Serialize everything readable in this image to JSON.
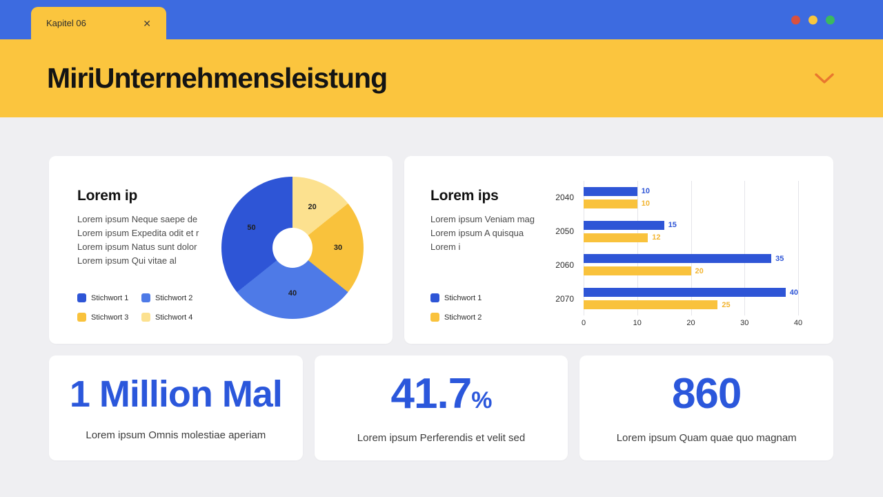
{
  "theme": {
    "primary_blue": "#3D6BE0",
    "accent_yellow": "#FBC53E",
    "background": "#EFEFF2",
    "stat_blue": "#2B57DB",
    "chevron_orange": "#E9772E",
    "title_color": "#141414"
  },
  "window": {
    "tab_label": "Kapitel 06",
    "close_glyph": "✕",
    "traffic_lights": [
      {
        "name": "red",
        "color": "#D9513F"
      },
      {
        "name": "yellow",
        "color": "#F8C63F"
      },
      {
        "name": "green",
        "color": "#3BB95F"
      }
    ]
  },
  "header": {
    "title": "MiriUnternehmensleistung"
  },
  "pie_card": {
    "title": "Lorem ip",
    "lines": [
      "Lorem ipsum Neque saepe de",
      "Lorem ipsum Expedita odit et r",
      "Lorem ipsum Natus sunt dolor",
      "Lorem ipsum Qui vitae al"
    ],
    "legend": [
      {
        "label": "Stichwort 1",
        "color": "#2E55D6"
      },
      {
        "label": "Stichwort 2",
        "color": "#4E7AE7"
      },
      {
        "label": "Stichwort 3",
        "color": "#F9C23C"
      },
      {
        "label": "Stichwort 4",
        "color": "#FCE18F"
      }
    ]
  },
  "bar_card": {
    "title": "Lorem ips",
    "lines": [
      "Lorem ipsum Veniam mag",
      "Lorem ipsum A quisqua",
      "Lorem i"
    ],
    "legend": [
      {
        "label": "Stichwort 1",
        "color": "#2E55D6"
      },
      {
        "label": "Stichwort 2",
        "color": "#F9C23C"
      }
    ]
  },
  "chart_data": [
    {
      "type": "pie",
      "title": "Lorem ip",
      "donut": true,
      "start_angle_deg": 0,
      "clockwise": true,
      "slices": [
        {
          "label": "Stichwort 4",
          "value": 20,
          "color": "#FCE18F"
        },
        {
          "label": "Stichwort 3",
          "value": 30,
          "color": "#F9C23C"
        },
        {
          "label": "Stichwort 2",
          "value": 40,
          "color": "#4E7AE7"
        },
        {
          "label": "Stichwort 1",
          "value": 50,
          "color": "#2E55D6"
        }
      ]
    },
    {
      "type": "bar",
      "orientation": "horizontal",
      "title": "Lorem ips",
      "categories": [
        "2040",
        "2050",
        "2060",
        "2070"
      ],
      "series": [
        {
          "name": "Stichwort 1",
          "color": "#2E55D6",
          "label_color": "#2E55D6",
          "values": [
            10,
            15,
            35,
            40
          ]
        },
        {
          "name": "Stichwort 2",
          "color": "#F9C23C",
          "label_color": "#F2B430",
          "values": [
            10,
            12,
            20,
            25
          ]
        }
      ],
      "xlim": [
        0,
        40
      ],
      "xticks": [
        0,
        10,
        20,
        30,
        40
      ],
      "grid": true,
      "legend_position": "bottom-left"
    }
  ],
  "stats": [
    {
      "value": "1 Million Mal",
      "caption": "Lorem ipsum Omnis molestiae aperiam"
    },
    {
      "value": "41.7",
      "unit": "%",
      "caption": "Lorem ipsum Perferendis et velit sed"
    },
    {
      "value": "860",
      "caption": "Lorem ipsum Quam quae quo magnam"
    }
  ]
}
